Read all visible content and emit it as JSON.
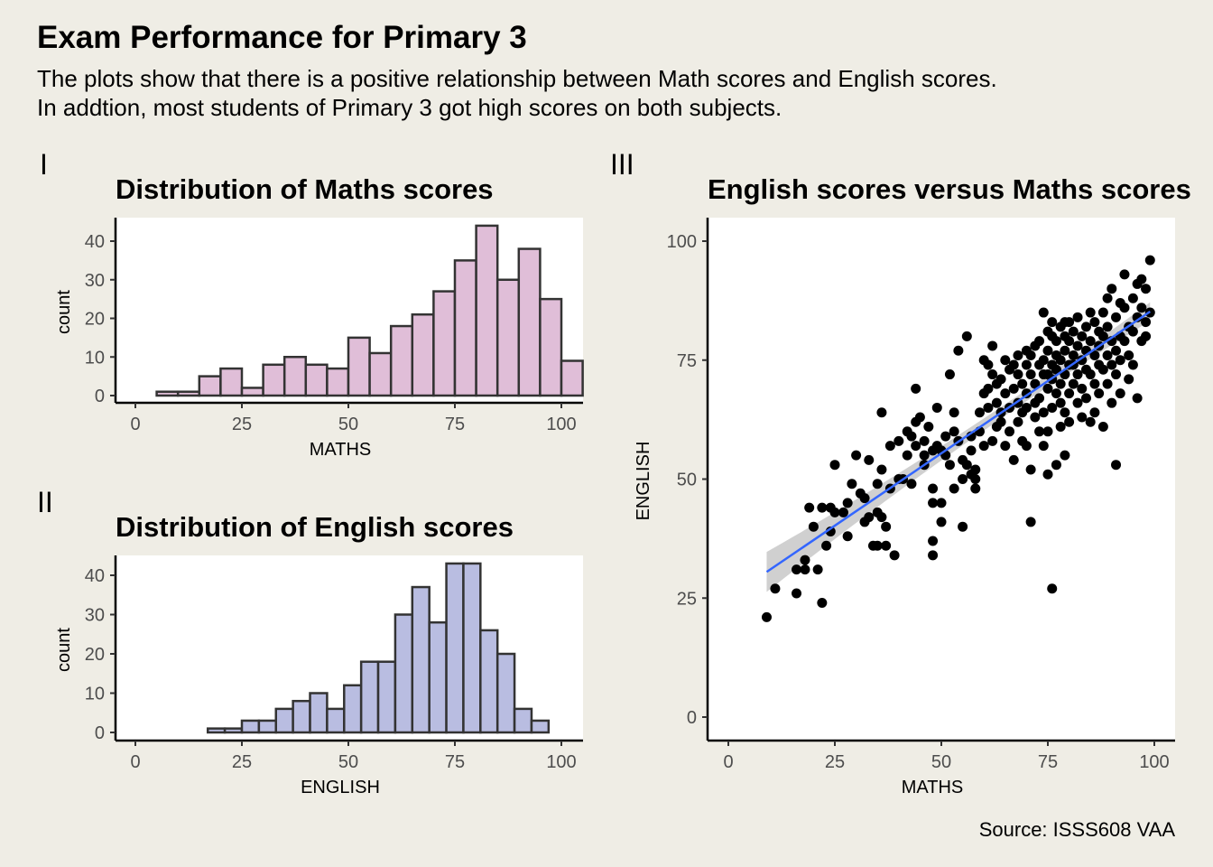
{
  "header": {
    "title": "Exam Performance for Primary 3",
    "subtitle_1": "The plots show that there is a positive relationship between Math scores and English scores.",
    "subtitle_2": "In addtion, most students of Primary 3 got high scores on both subjects.",
    "source": "Source: ISSS608 VAA"
  },
  "tags": {
    "p1": "I",
    "p2": "II",
    "p3": "III"
  },
  "chart_data": [
    {
      "type": "bar",
      "title": "Distribution of Maths scores",
      "xlabel": "MATHS",
      "ylabel": "count",
      "xlim": [
        0,
        100
      ],
      "ylim": [
        0,
        44
      ],
      "xticks": [
        0,
        25,
        50,
        75,
        100
      ],
      "yticks": [
        0,
        10,
        20,
        30,
        40
      ],
      "bin_start": 5,
      "bin_width": 5,
      "counts": [
        1,
        1,
        5,
        7,
        2,
        8,
        10,
        8,
        7,
        15,
        11,
        18,
        21,
        27,
        35,
        44,
        30,
        38,
        25,
        9
      ],
      "fill": "#e0bed8",
      "stroke": "#333333"
    },
    {
      "type": "bar",
      "title": "Distribution of English scores",
      "xlabel": "ENGLISH",
      "ylabel": "count",
      "xlim": [
        0,
        100
      ],
      "ylim": [
        0,
        43
      ],
      "xticks": [
        0,
        25,
        50,
        75,
        100
      ],
      "yticks": [
        0,
        10,
        20,
        30,
        40
      ],
      "bin_start": 17,
      "bin_width": 4,
      "counts": [
        1,
        1,
        3,
        3,
        6,
        8,
        10,
        6,
        12,
        18,
        18,
        30,
        37,
        28,
        43,
        43,
        26,
        20,
        6,
        3
      ],
      "fill": "#b9bde1",
      "stroke": "#333333"
    },
    {
      "type": "scatter",
      "title": "English scores versus Maths scores",
      "xlabel": "MATHS",
      "ylabel": "ENGLISH",
      "xlim": [
        0,
        100
      ],
      "ylim": [
        0,
        100
      ],
      "xticks": [
        0,
        25,
        50,
        75,
        100
      ],
      "yticks": [
        0,
        25,
        50,
        75,
        100
      ],
      "point_color": "#000000",
      "fit_line": {
        "x": [
          9,
          99
        ],
        "y": [
          30.5,
          85.2
        ],
        "color": "#3366ff",
        "band_color": "#c8c8c8"
      },
      "points": [
        [
          9,
          21
        ],
        [
          11,
          27
        ],
        [
          16,
          26
        ],
        [
          16,
          31
        ],
        [
          18,
          33
        ],
        [
          18,
          31
        ],
        [
          19,
          44
        ],
        [
          20,
          40
        ],
        [
          21,
          31
        ],
        [
          22,
          24
        ],
        [
          22,
          44
        ],
        [
          23,
          36
        ],
        [
          24,
          44
        ],
        [
          24,
          39
        ],
        [
          25,
          43
        ],
        [
          25,
          53
        ],
        [
          27,
          43
        ],
        [
          28,
          38
        ],
        [
          28,
          45
        ],
        [
          29,
          49
        ],
        [
          30,
          55
        ],
        [
          31,
          47
        ],
        [
          32,
          46
        ],
        [
          32,
          41
        ],
        [
          33,
          42
        ],
        [
          33,
          54
        ],
        [
          34,
          36
        ],
        [
          35,
          36
        ],
        [
          35,
          49
        ],
        [
          35,
          43
        ],
        [
          36,
          64
        ],
        [
          36,
          42
        ],
        [
          36,
          52
        ],
        [
          37,
          40
        ],
        [
          37,
          36
        ],
        [
          38,
          48
        ],
        [
          38,
          57
        ],
        [
          39,
          34
        ],
        [
          40,
          58
        ],
        [
          40,
          50
        ],
        [
          41,
          50
        ],
        [
          42,
          55
        ],
        [
          42,
          60
        ],
        [
          43,
          49
        ],
        [
          43,
          59
        ],
        [
          44,
          62
        ],
        [
          44,
          69
        ],
        [
          44,
          57
        ],
        [
          45,
          63
        ],
        [
          46,
          55
        ],
        [
          46,
          58
        ],
        [
          46,
          53
        ],
        [
          47,
          61
        ],
        [
          48,
          56
        ],
        [
          48,
          48
        ],
        [
          48,
          34
        ],
        [
          48,
          37
        ],
        [
          48,
          45
        ],
        [
          49,
          57
        ],
        [
          49,
          65
        ],
        [
          50,
          45
        ],
        [
          50,
          56
        ],
        [
          50,
          41
        ],
        [
          51,
          59
        ],
        [
          51,
          55
        ],
        [
          52,
          53
        ],
        [
          52,
          72
        ],
        [
          53,
          64
        ],
        [
          53,
          48
        ],
        [
          53,
          60
        ],
        [
          54,
          77
        ],
        [
          54,
          58
        ],
        [
          55,
          50
        ],
        [
          55,
          54
        ],
        [
          55,
          40
        ],
        [
          56,
          80
        ],
        [
          56,
          53
        ],
        [
          57,
          51
        ],
        [
          57,
          56
        ],
        [
          57,
          59
        ],
        [
          58,
          52
        ],
        [
          58,
          50
        ],
        [
          58,
          48
        ],
        [
          59,
          60
        ],
        [
          59,
          64
        ],
        [
          60,
          57
        ],
        [
          60,
          68
        ],
        [
          60,
          75
        ],
        [
          61,
          74
        ],
        [
          61,
          65
        ],
        [
          61,
          69
        ],
        [
          62,
          72
        ],
        [
          62,
          78
        ],
        [
          62,
          58
        ],
        [
          63,
          70
        ],
        [
          63,
          61
        ],
        [
          63,
          66
        ],
        [
          64,
          71
        ],
        [
          64,
          62
        ],
        [
          64,
          64
        ],
        [
          65,
          57
        ],
        [
          65,
          75
        ],
        [
          65,
          68
        ],
        [
          66,
          60
        ],
        [
          66,
          65
        ],
        [
          66,
          73
        ],
        [
          67,
          69
        ],
        [
          67,
          74
        ],
        [
          67,
          54
        ],
        [
          68,
          72
        ],
        [
          68,
          66
        ],
        [
          68,
          76
        ],
        [
          68,
          62
        ],
        [
          69,
          58
        ],
        [
          69,
          64
        ],
        [
          69,
          70
        ],
        [
          70,
          74
        ],
        [
          70,
          77
        ],
        [
          70,
          68
        ],
        [
          70,
          65
        ],
        [
          70,
          57
        ],
        [
          71,
          76
        ],
        [
          71,
          72
        ],
        [
          71,
          52
        ],
        [
          71,
          41
        ],
        [
          72,
          78
        ],
        [
          72,
          63
        ],
        [
          72,
          66
        ],
        [
          72,
          70
        ],
        [
          73,
          74
        ],
        [
          73,
          60
        ],
        [
          73,
          79
        ],
        [
          73,
          67
        ],
        [
          74,
          75
        ],
        [
          74,
          72
        ],
        [
          74,
          64
        ],
        [
          74,
          57
        ],
        [
          74,
          85
        ],
        [
          75,
          77
        ],
        [
          75,
          69
        ],
        [
          75,
          72
        ],
        [
          75,
          81
        ],
        [
          75,
          60
        ],
        [
          75,
          51
        ],
        [
          76,
          80
        ],
        [
          76,
          74
        ],
        [
          76,
          65
        ],
        [
          76,
          71
        ],
        [
          76,
          83
        ],
        [
          76,
          27
        ],
        [
          77,
          76
        ],
        [
          77,
          79
        ],
        [
          77,
          68
        ],
        [
          77,
          73
        ],
        [
          77,
          53
        ],
        [
          78,
          82
        ],
        [
          78,
          75
        ],
        [
          78,
          70
        ],
        [
          78,
          61
        ],
        [
          78,
          66
        ],
        [
          79,
          80
        ],
        [
          79,
          77
        ],
        [
          79,
          72
        ],
        [
          79,
          83
        ],
        [
          79,
          64
        ],
        [
          79,
          55
        ],
        [
          80,
          79
        ],
        [
          80,
          74
        ],
        [
          80,
          68
        ],
        [
          80,
          62
        ],
        [
          80,
          83
        ],
        [
          81,
          81
        ],
        [
          81,
          76
        ],
        [
          81,
          70
        ],
        [
          81,
          74
        ],
        [
          82,
          78
        ],
        [
          82,
          66
        ],
        [
          82,
          72
        ],
        [
          82,
          84
        ],
        [
          83,
          80
        ],
        [
          83,
          75
        ],
        [
          83,
          69
        ],
        [
          83,
          63
        ],
        [
          84,
          73
        ],
        [
          84,
          82
        ],
        [
          84,
          77
        ],
        [
          84,
          67
        ],
        [
          85,
          85
        ],
        [
          85,
          79
        ],
        [
          85,
          72
        ],
        [
          85,
          62
        ],
        [
          86,
          83
        ],
        [
          86,
          76
        ],
        [
          86,
          70
        ],
        [
          86,
          64
        ],
        [
          87,
          81
        ],
        [
          87,
          74
        ],
        [
          87,
          78
        ],
        [
          87,
          68
        ],
        [
          88,
          85
        ],
        [
          88,
          80
        ],
        [
          88,
          73
        ],
        [
          88,
          61
        ],
        [
          89,
          82
        ],
        [
          89,
          76
        ],
        [
          89,
          70
        ],
        [
          89,
          88
        ],
        [
          90,
          90
        ],
        [
          90,
          79
        ],
        [
          90,
          74
        ],
        [
          90,
          66
        ],
        [
          91,
          84
        ],
        [
          91,
          77
        ],
        [
          91,
          72
        ],
        [
          91,
          53
        ],
        [
          92,
          87
        ],
        [
          92,
          80
        ],
        [
          92,
          75
        ],
        [
          92,
          68
        ],
        [
          93,
          86
        ],
        [
          93,
          79
        ],
        [
          93,
          93
        ],
        [
          94,
          82
        ],
        [
          94,
          76
        ],
        [
          94,
          71
        ],
        [
          95,
          88
        ],
        [
          95,
          81
        ],
        [
          95,
          74
        ],
        [
          96,
          91
        ],
        [
          96,
          84
        ],
        [
          96,
          67
        ],
        [
          97,
          86
        ],
        [
          97,
          79
        ],
        [
          97,
          92
        ],
        [
          98,
          90
        ],
        [
          98,
          83
        ],
        [
          98,
          80
        ],
        [
          99,
          96
        ],
        [
          99,
          85
        ]
      ]
    }
  ]
}
